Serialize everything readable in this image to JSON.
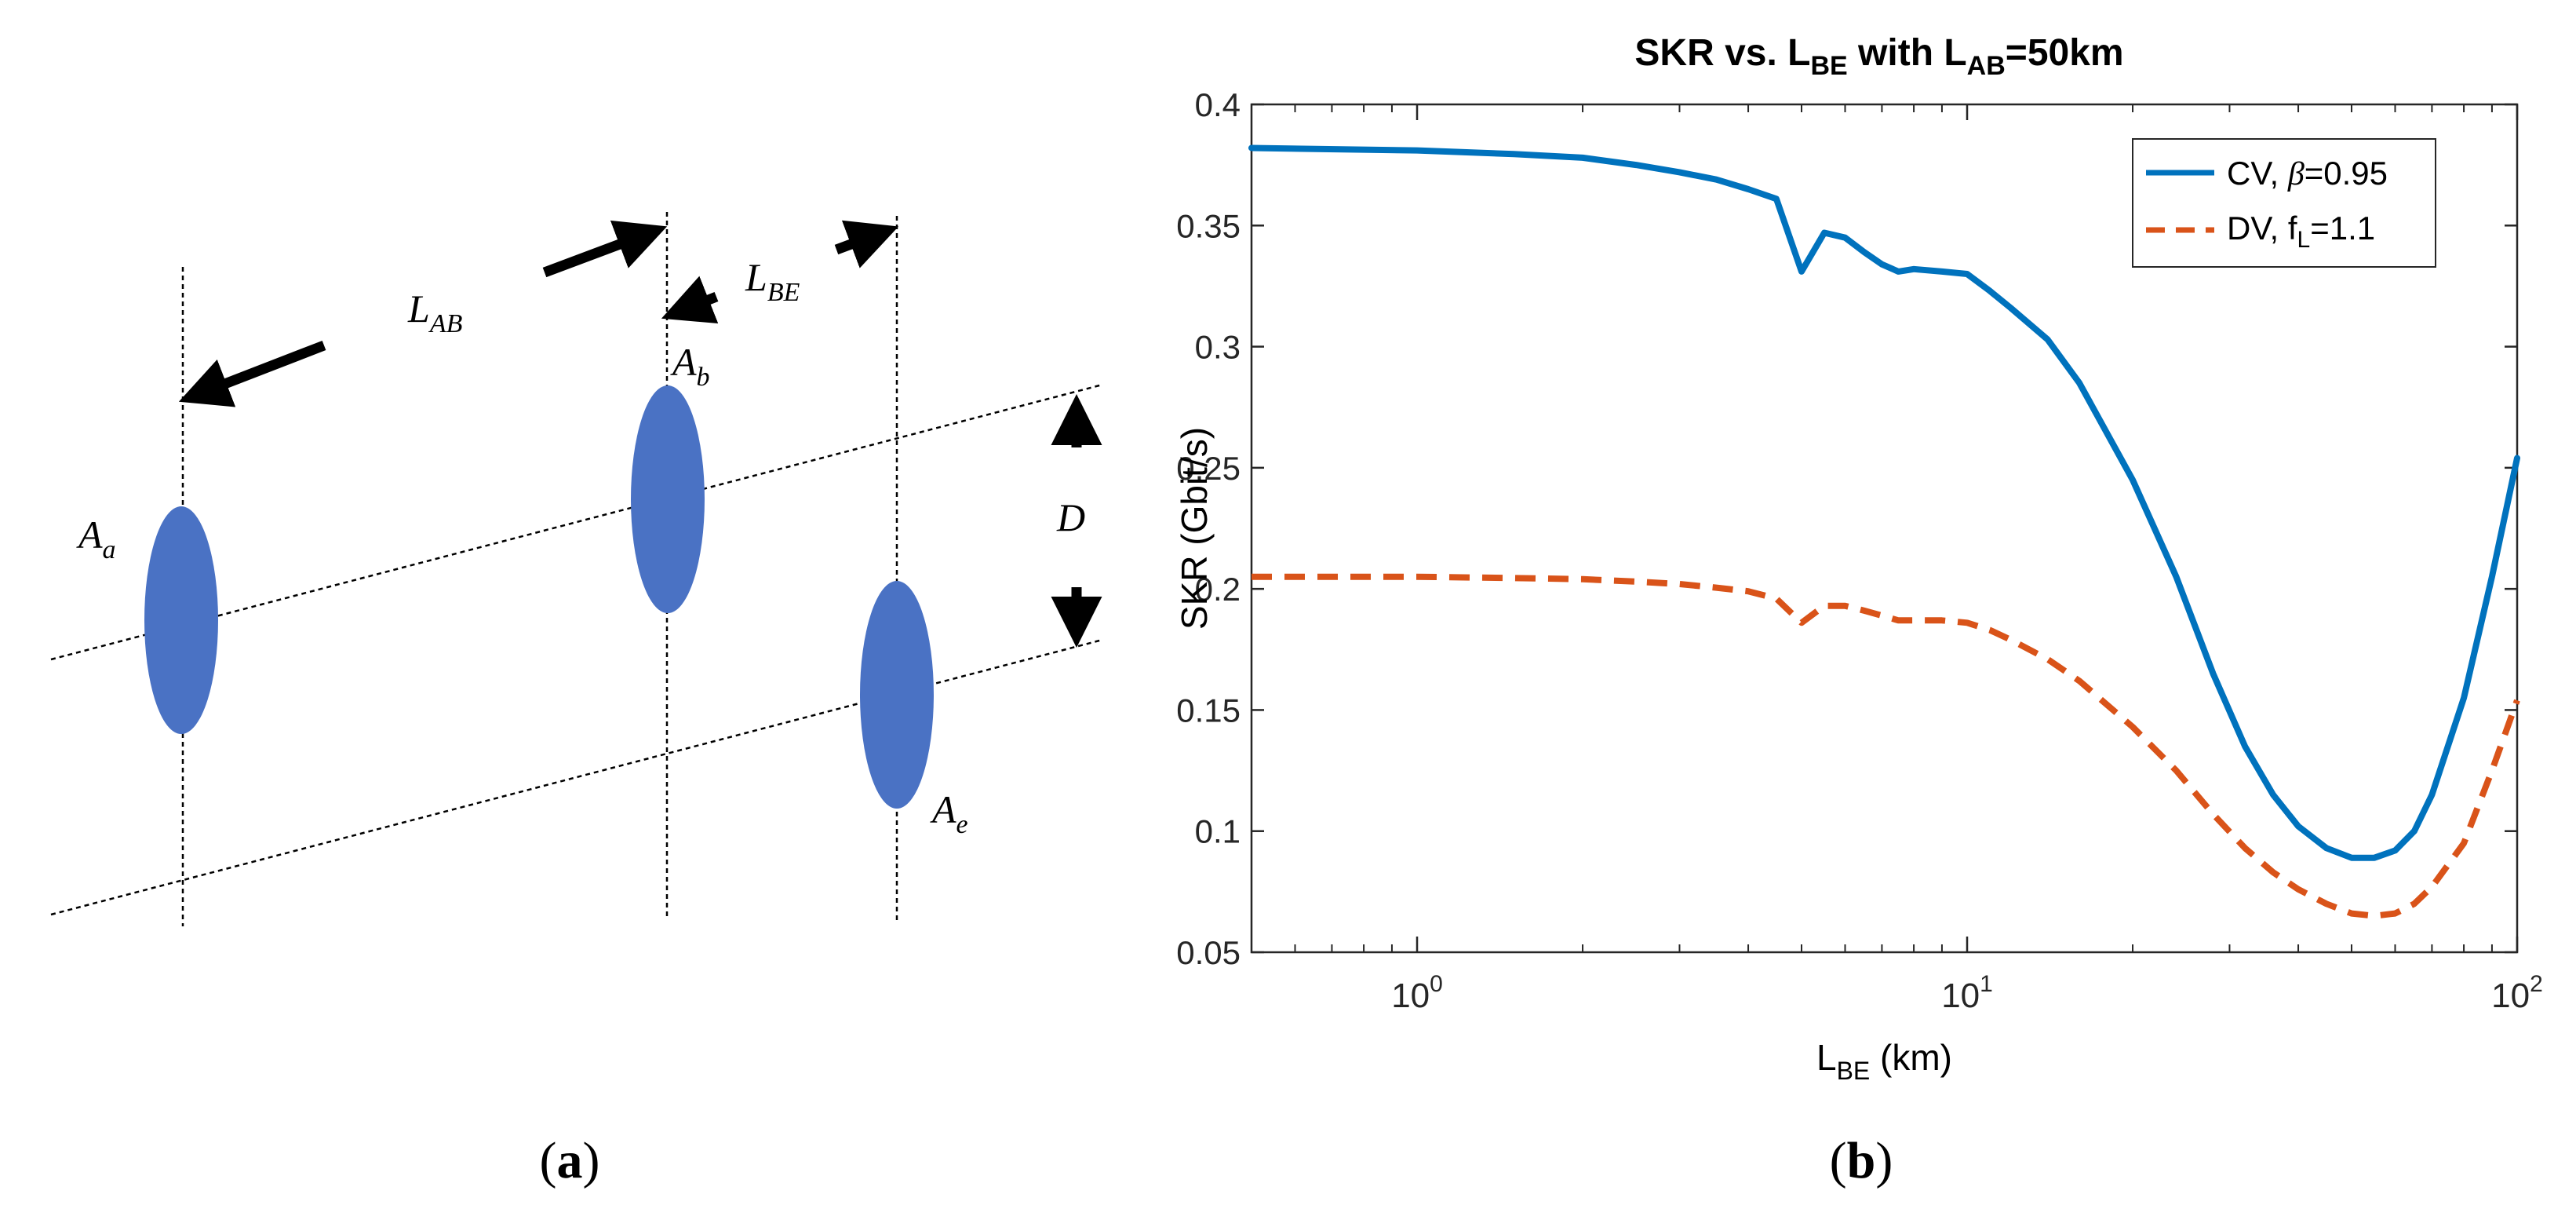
{
  "panel_a": {
    "caption": {
      "open": "(",
      "letter": "a",
      "close": ")"
    },
    "labels": {
      "LAB": {
        "base": "L",
        "sub": "AB"
      },
      "LBE": {
        "base": "L",
        "sub": "BE"
      },
      "D": "D",
      "Aa": {
        "base": "A",
        "sub": "a"
      },
      "Ab": {
        "base": "A",
        "sub": "b"
      },
      "Ae": {
        "base": "A",
        "sub": "e"
      }
    },
    "colors": {
      "aperture": "#4a72c4",
      "arrow": "#000000",
      "guide": "#000000"
    }
  },
  "panel_b": {
    "caption": {
      "open": "(",
      "letter": "b",
      "close": ")"
    }
  },
  "chart_data": {
    "type": "line",
    "x_scale": "log",
    "title": {
      "part1": "SKR vs. L",
      "sub1": "BE",
      "part2": " with L",
      "sub2": "AB",
      "part3": "=50km"
    },
    "xlabel": {
      "base": "L",
      "sub": "BE",
      "rest": " (km)"
    },
    "ylabel": "SKR (Gbit/s)",
    "xlim": [
      0.5,
      100
    ],
    "ylim": [
      0.05,
      0.4
    ],
    "x_ticks": [
      {
        "value": 1,
        "base": "10",
        "exp": "0"
      },
      {
        "value": 10,
        "base": "10",
        "exp": "1"
      },
      {
        "value": 100,
        "base": "10",
        "exp": "2"
      }
    ],
    "y_ticks": [
      {
        "value": 0.05,
        "label": "0.05"
      },
      {
        "value": 0.1,
        "label": "0.1"
      },
      {
        "value": 0.15,
        "label": "0.15"
      },
      {
        "value": 0.2,
        "label": "0.2"
      },
      {
        "value": 0.25,
        "label": "0.25"
      },
      {
        "value": 0.3,
        "label": "0.3"
      },
      {
        "value": 0.35,
        "label": "0.35"
      },
      {
        "value": 0.4,
        "label": "0.4"
      }
    ],
    "legend_position": "top-right",
    "series": [
      {
        "name": "CV",
        "legend": {
          "prefix": "CV, ",
          "symbol": "β",
          "suffix": "=0.95"
        },
        "color": "#0072bd",
        "style": "solid",
        "x": [
          0.5,
          1,
          1.5,
          2,
          2.5,
          3,
          3.5,
          4,
          4.5,
          5,
          5.5,
          6,
          6.5,
          7,
          7.5,
          8,
          9,
          10,
          11,
          12,
          14,
          16,
          20,
          24,
          28,
          32,
          36,
          40,
          45,
          50,
          55,
          60,
          65,
          70,
          80,
          90,
          100
        ],
        "values": [
          0.382,
          0.381,
          0.3795,
          0.378,
          0.375,
          0.372,
          0.369,
          0.365,
          0.361,
          0.331,
          0.347,
          0.345,
          0.339,
          0.334,
          0.331,
          0.332,
          0.331,
          0.33,
          0.323,
          0.316,
          0.303,
          0.285,
          0.245,
          0.205,
          0.165,
          0.135,
          0.115,
          0.102,
          0.093,
          0.089,
          0.089,
          0.092,
          0.1,
          0.115,
          0.155,
          0.205,
          0.254
        ]
      },
      {
        "name": "DV",
        "legend": {
          "prefix": "DV, f",
          "sub": "L",
          "suffix": "=1.1"
        },
        "color": "#d95319",
        "style": "dashed",
        "x": [
          0.5,
          1,
          1.5,
          2,
          2.5,
          3,
          3.5,
          4,
          4.5,
          5,
          5.5,
          6,
          6.5,
          7,
          7.5,
          8,
          9,
          10,
          11,
          12,
          14,
          16,
          20,
          24,
          28,
          32,
          36,
          40,
          45,
          50,
          55,
          60,
          65,
          70,
          80,
          90,
          100
        ],
        "values": [
          0.205,
          0.205,
          0.2045,
          0.204,
          0.203,
          0.202,
          0.2005,
          0.199,
          0.196,
          0.186,
          0.193,
          0.193,
          0.191,
          0.189,
          0.187,
          0.187,
          0.187,
          0.186,
          0.183,
          0.179,
          0.171,
          0.162,
          0.143,
          0.125,
          0.107,
          0.093,
          0.083,
          0.076,
          0.07,
          0.066,
          0.065,
          0.066,
          0.07,
          0.077,
          0.095,
          0.125,
          0.154
        ]
      }
    ]
  }
}
